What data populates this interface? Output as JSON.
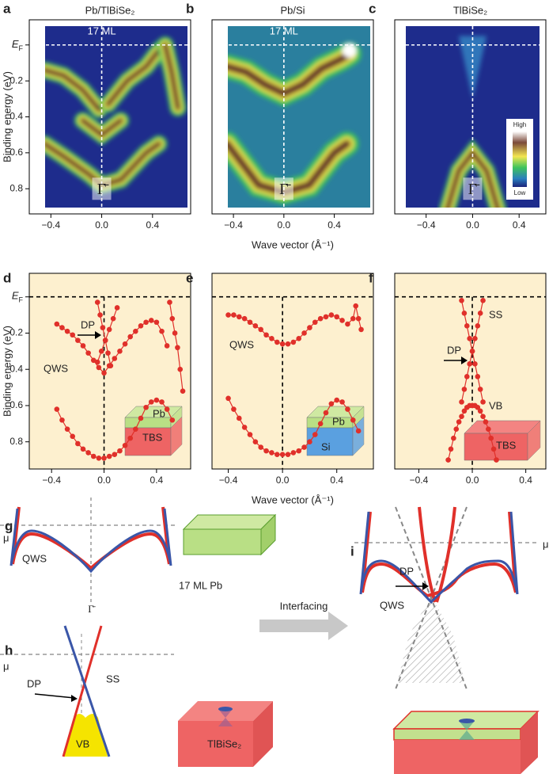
{
  "chart_data": [
    {
      "type": "image",
      "label": "a",
      "title": "Pb/TlBiSe₂",
      "annotation": "17 ML",
      "marker": "Γ̄",
      "ylabel": "Binding energy (eV)",
      "xlim": [
        -0.57,
        0.7
      ],
      "ylim": [
        -0.14,
        0.94
      ],
      "xticks": [
        {
          "value": -0.4,
          "label": "−0.4"
        },
        {
          "value": 0,
          "label": "0.0"
        },
        0.4
      ],
      "yticks": [
        {
          "value": 0,
          "label": "E",
          "label_sub": "F"
        },
        0.2,
        0.4,
        0.6,
        0.8
      ]
    },
    {
      "type": "image",
      "label": "b",
      "title": "Pb/Si",
      "annotation": "17 ML",
      "marker": "Γ̄",
      "xlabel": "Wave vector (Å⁻¹)",
      "xlim": [
        -0.57,
        0.71
      ],
      "ylim": [
        -0.14,
        0.94
      ],
      "xticks": [
        {
          "value": -0.4,
          "label": "−0.4"
        },
        {
          "value": 0,
          "label": "0.0"
        },
        0.4
      ]
    },
    {
      "type": "image",
      "label": "c",
      "title": "TlBiSe₂",
      "marker": "Γ̄",
      "colorbar_labels": [
        "High",
        "Low"
      ],
      "xlim": [
        -0.67,
        0.63
      ],
      "ylim": [
        -0.14,
        0.94
      ],
      "xticks": [
        {
          "value": -0.4,
          "label": "−0.4"
        },
        {
          "value": 0,
          "label": "0.0"
        },
        0.4
      ]
    },
    {
      "type": "line",
      "label": "d",
      "ylabel": "Binding energy (eV)",
      "background": "#fdf0cf",
      "annotations": [
        "DP",
        "QWS",
        "Pb",
        "TBS"
      ],
      "xlim": [
        -0.57,
        0.66
      ],
      "ylim": [
        -0.13,
        0.95
      ],
      "xticks": [
        {
          "value": -0.4,
          "label": "−0.4"
        },
        {
          "value": 0,
          "label": "0.0"
        },
        0.4
      ],
      "yticks": [
        {
          "value": 0,
          "label": "E",
          "label_sub": "F"
        },
        0.2,
        0.4,
        0.6,
        0.8
      ],
      "series": [
        {
          "color": "#e0302a",
          "x": [
            -0.36,
            -0.32,
            -0.28,
            -0.24,
            -0.2,
            -0.16,
            -0.12,
            -0.08,
            -0.04,
            0,
            0.04,
            0.08,
            0.12,
            0.16,
            0.2,
            0.24,
            0.28,
            0.32,
            0.36,
            0.4,
            0.44,
            0.48
          ],
          "values": [
            0.15,
            0.17,
            0.19,
            0.21,
            0.24,
            0.27,
            0.31,
            0.35,
            0.39,
            0.42,
            0.38,
            0.34,
            0.3,
            0.26,
            0.22,
            0.19,
            0.16,
            0.14,
            0.13,
            0.14,
            0.19,
            0.27
          ]
        },
        {
          "color": "#e0302a",
          "x": [
            -0.05,
            -0.03,
            -0.01,
            0.01,
            0.03,
            0.05
          ],
          "values": [
            0.03,
            0.1,
            0.17,
            0.24,
            0.31,
            0.38
          ]
        },
        {
          "color": "#e0302a",
          "x": [
            0.1,
            0.07,
            0.04,
            0.01,
            -0.02,
            -0.05
          ],
          "values": [
            0.06,
            0.12,
            0.18,
            0.24,
            0.3,
            0.36
          ]
        },
        {
          "color": "#e0302a",
          "x": [
            0.5,
            0.52,
            0.54,
            0.56,
            0.58,
            0.6
          ],
          "values": [
            0.03,
            0.12,
            0.2,
            0.28,
            0.4,
            0.52
          ]
        },
        {
          "color": "#e0302a",
          "x": [
            -0.36,
            -0.32,
            -0.28,
            -0.24,
            -0.2,
            -0.16,
            -0.12,
            -0.08,
            -0.04,
            0,
            0.04,
            0.08,
            0.12,
            0.16,
            0.2,
            0.24,
            0.28,
            0.32,
            0.36,
            0.4,
            0.44,
            0.48,
            0.52
          ],
          "values": [
            0.62,
            0.68,
            0.73,
            0.77,
            0.81,
            0.84,
            0.86,
            0.88,
            0.89,
            0.89,
            0.88,
            0.87,
            0.85,
            0.82,
            0.78,
            0.73,
            0.67,
            0.61,
            0.58,
            0.57,
            0.58,
            0.62,
            0.68
          ]
        }
      ]
    },
    {
      "type": "line",
      "label": "e",
      "xlabel": "Wave vector (Å⁻¹)",
      "background": "#fdf0cf",
      "annotations": [
        "QWS",
        "Pb",
        "Si"
      ],
      "xlim": [
        -0.52,
        0.67
      ],
      "ylim": [
        -0.13,
        0.95
      ],
      "xticks": [
        {
          "value": -0.4,
          "label": "−0.4"
        },
        {
          "value": 0,
          "label": "0.0"
        },
        0.4
      ],
      "series": [
        {
          "color": "#e0302a",
          "x": [
            -0.4,
            -0.36,
            -0.32,
            -0.28,
            -0.24,
            -0.2,
            -0.16,
            -0.12,
            -0.08,
            -0.04,
            0,
            0.04,
            0.08,
            0.12,
            0.16,
            0.2,
            0.24,
            0.28,
            0.32,
            0.36,
            0.4,
            0.44
          ],
          "values": [
            0.1,
            0.1,
            0.11,
            0.12,
            0.14,
            0.16,
            0.18,
            0.21,
            0.23,
            0.25,
            0.26,
            0.26,
            0.25,
            0.23,
            0.2,
            0.17,
            0.14,
            0.12,
            0.11,
            0.1,
            0.11,
            0.13
          ]
        },
        {
          "color": "#e0302a",
          "x": [
            0.48,
            0.52,
            0.54,
            0.56,
            0.58
          ],
          "values": [
            0.15,
            0.12,
            0.05,
            0.12,
            0.18
          ]
        },
        {
          "color": "#e0302a",
          "x": [
            -0.4,
            -0.36,
            -0.32,
            -0.28,
            -0.24,
            -0.2,
            -0.16,
            -0.12,
            -0.08,
            -0.04,
            0,
            0.04,
            0.08,
            0.12,
            0.16,
            0.2,
            0.24,
            0.28,
            0.32,
            0.36,
            0.4,
            0.44,
            0.48,
            0.52,
            0.56
          ],
          "values": [
            0.56,
            0.62,
            0.67,
            0.72,
            0.76,
            0.8,
            0.83,
            0.85,
            0.86,
            0.87,
            0.87,
            0.87,
            0.86,
            0.85,
            0.83,
            0.8,
            0.76,
            0.7,
            0.64,
            0.59,
            0.57,
            0.58,
            0.62,
            0.68,
            0.74
          ]
        }
      ]
    },
    {
      "type": "line",
      "label": "f",
      "background": "#fdf0cf",
      "annotations": [
        "SS",
        "DP",
        "VB",
        "TBS"
      ],
      "xlim": [
        -0.58,
        0.55
      ],
      "ylim": [
        -0.13,
        0.95
      ],
      "xticks": [
        {
          "value": -0.4,
          "label": "−0.4"
        },
        {
          "value": 0,
          "label": "0.0"
        },
        0.4
      ],
      "series": [
        {
          "color": "#e0302a",
          "x": [
            -0.08,
            -0.06,
            -0.04,
            -0.02,
            0,
            0.02,
            0.04,
            0.06,
            0.08
          ],
          "values": [
            0.02,
            0.09,
            0.16,
            0.23,
            0.3,
            0.37,
            0.44,
            0.51,
            0.58
          ]
        },
        {
          "color": "#e0302a",
          "x": [
            0.08,
            0.06,
            0.04,
            0.02,
            0,
            -0.02,
            -0.04,
            -0.06,
            -0.08
          ],
          "values": [
            0.02,
            0.09,
            0.16,
            0.23,
            0.3,
            0.37,
            0.44,
            0.51,
            0.58
          ]
        },
        {
          "color": "#e0302a",
          "x": [
            -0.18,
            -0.16,
            -0.14,
            -0.12,
            -0.1,
            -0.08,
            -0.06,
            -0.04,
            -0.02,
            0
          ],
          "values": [
            0.9,
            0.84,
            0.78,
            0.73,
            0.69,
            0.66,
            0.63,
            0.61,
            0.6,
            0.6
          ]
        },
        {
          "color": "#e0302a",
          "x": [
            0,
            0.02,
            0.04,
            0.06,
            0.08,
            0.1,
            0.12,
            0.14,
            0.16,
            0.18
          ],
          "values": [
            0.6,
            0.6,
            0.61,
            0.63,
            0.66,
            0.69,
            0.73,
            0.78,
            0.84,
            0.9
          ]
        }
      ]
    }
  ],
  "schematics": {
    "g": {
      "label": "g",
      "mu": "μ",
      "qws": "QWS",
      "gamma": "Γ̄",
      "slab": "17 ML Pb"
    },
    "h": {
      "label": "h",
      "mu": "μ",
      "dp": "DP",
      "ss": "SS",
      "vb": "VB",
      "slab": "TlBiSe₂"
    },
    "arrow": "Interfacing",
    "i": {
      "label": "i",
      "mu": "μ",
      "dp": "DP",
      "qws": "QWS"
    }
  }
}
